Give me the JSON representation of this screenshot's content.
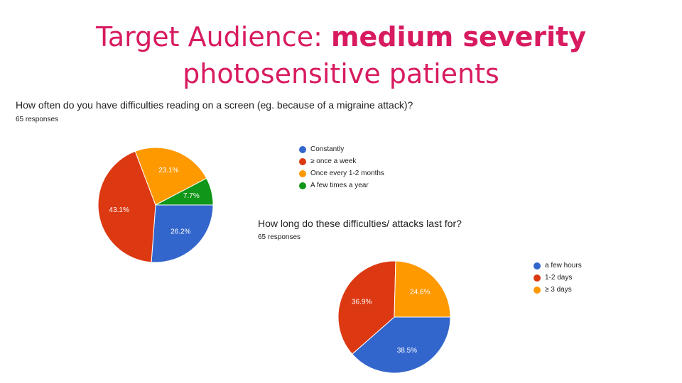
{
  "slide": {
    "title_prefix": "Target Audience: ",
    "title_bold": "medium severity",
    "title_line2": "photosensitive patients",
    "title_color": "#d81b60"
  },
  "chart_data": [
    {
      "type": "pie",
      "title": "How often do you have difficulties reading on a screen (eg. because of a migraine attack)?",
      "subtitle": "65 responses",
      "categories": [
        "Constantly",
        "≥ once a week",
        "Once every 1-2 months",
        "A few times a year"
      ],
      "values": [
        26.2,
        43.1,
        23.1,
        7.7
      ],
      "labels": [
        "26.2%",
        "43.1%",
        "23.1%",
        "7.7%"
      ],
      "colors": [
        "#3366cc",
        "#dc3912",
        "#ff9900",
        "#109618"
      ],
      "legend_position": "right"
    },
    {
      "type": "pie",
      "title": "How long do these difficulties/ attacks last for?",
      "subtitle": "65 responses",
      "categories": [
        "a few hours",
        "1-2 days",
        "≥ 3 days"
      ],
      "values": [
        38.5,
        36.9,
        24.6
      ],
      "labels": [
        "38.5%",
        "36.9%",
        "24.6%"
      ],
      "colors": [
        "#3366cc",
        "#dc3912",
        "#ff9900"
      ],
      "legend_position": "right"
    }
  ]
}
